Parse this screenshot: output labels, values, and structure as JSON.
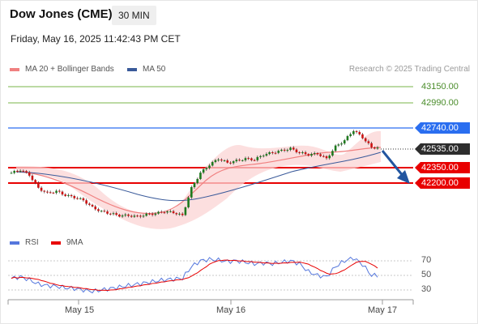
{
  "header": {
    "title": "Dow Jones (CME)",
    "timeframe": "30 MIN",
    "datetime": "Friday, May 16, 2025 11:42:43 PM CET"
  },
  "legend": {
    "ma20": "MA 20 + Bollinger Bands",
    "ma50": "MA 50",
    "credit": "Research © 2025 Trading Central",
    "ma20_color": "#f08080",
    "ma50_color": "#3a5a9a"
  },
  "levels": {
    "l1": "43150.00",
    "l2": "42990.00",
    "l3": "42740.00",
    "last": "42535.00",
    "l4": "42350.00",
    "l5": "42200.00"
  },
  "rsi_legend": {
    "rsi": "RSI",
    "ma": "9MA"
  },
  "rsi_ticks": {
    "t70": "70",
    "t50": "50",
    "t30": "30"
  },
  "xaxis": {
    "d1": "May 15",
    "d2": "May 16",
    "d3": "May 17"
  },
  "colors": {
    "support": "#e80000",
    "resistance_blue": "#2a6ef0",
    "resistance_green": "#7ab648",
    "up_candle": "#1e7a1e",
    "down_candle": "#cc1111",
    "arrow": "#2255a0",
    "rsi": "#5577dd",
    "rsi_ma": "#e80000"
  },
  "chart_data": {
    "type": "candlestick",
    "symbol": "Dow Jones (CME)",
    "interval": "30 MIN",
    "price_range": [
      42080,
      43260
    ],
    "x_labels": [
      "May 15",
      "May 16",
      "May 17"
    ],
    "key_levels": [
      43150.0,
      42990.0,
      42740.0,
      42350.0,
      42200.0
    ],
    "last_price": 42535.0,
    "close_path": [
      42300,
      42330,
      42280,
      42150,
      42100,
      42120,
      42080,
      42060,
      42030,
      41960,
      41920,
      41900,
      41880,
      41880,
      41870,
      41890,
      41900,
      41920,
      41910,
      41880,
      42150,
      42300,
      42380,
      42440,
      42400,
      42420,
      42440,
      42430,
      42480,
      42500,
      42520,
      42540,
      42500,
      42480,
      42490,
      42440,
      42560,
      42620,
      42720,
      42650,
      42550
    ],
    "rsi": {
      "levels": [
        70,
        50,
        30
      ],
      "values": [
        46,
        48,
        44,
        38,
        36,
        35,
        33,
        32,
        30,
        28,
        30,
        32,
        34,
        36,
        38,
        40,
        42,
        44,
        45,
        46,
        62,
        70,
        72,
        71,
        69,
        70,
        68,
        66,
        67,
        66,
        68,
        70,
        66,
        55,
        50,
        48,
        62,
        70,
        74,
        65,
        50
      ]
    }
  }
}
